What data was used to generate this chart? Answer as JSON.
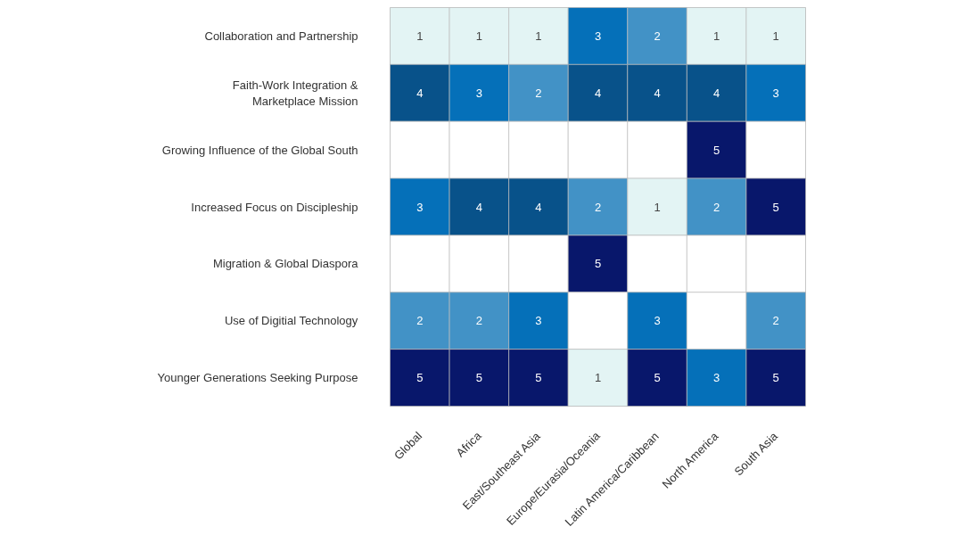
{
  "chart_data": {
    "type": "heatmap",
    "data_labels": true,
    "categories": [
      "Global",
      "Africa",
      "East/Southeast Asia",
      "Europe/Eurasia/Oceania",
      "Latin America/Caribbean",
      "North America",
      "South Asia"
    ],
    "y_categories": [
      "Collaboration and Partnership",
      "Faith-Work Integration &\nMarketplace Mission",
      "Growing Influence of the Global South",
      "Increased Focus on Discipleship",
      "Migration & Global Diaspora",
      "Use of Digitial Technology",
      "Younger Generations Seeking Purpose"
    ],
    "cells": [
      [
        1,
        1,
        1,
        3,
        2,
        1,
        1
      ],
      [
        4,
        3,
        2,
        4,
        4,
        4,
        3
      ],
      [
        null,
        null,
        null,
        null,
        null,
        5,
        null
      ],
      [
        3,
        4,
        4,
        2,
        1,
        2,
        5
      ],
      [
        null,
        null,
        null,
        5,
        null,
        null,
        null
      ],
      [
        2,
        2,
        3,
        null,
        3,
        null,
        2
      ],
      [
        5,
        5,
        5,
        1,
        5,
        3,
        5
      ]
    ]
  }
}
